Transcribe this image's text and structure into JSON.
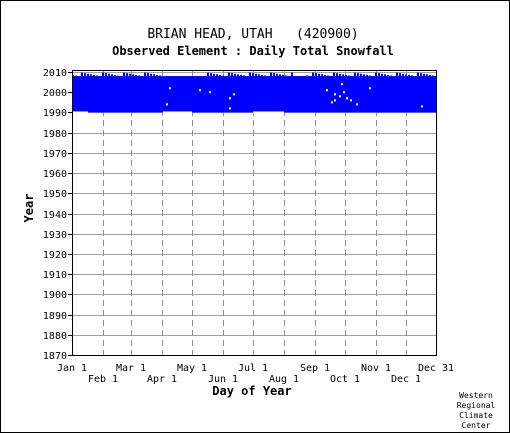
{
  "chart_data": {
    "type": "heatmap",
    "title": "BRIAN HEAD, UTAH   (420900)",
    "subtitle": "Observed Element : Daily Total Snowfall",
    "xlabel": "Day of Year",
    "ylabel": "Year",
    "ylim": [
      1870,
      2011
    ],
    "xlim": [
      1,
      365
    ],
    "y_ticks": [
      1870,
      1880,
      1890,
      1900,
      1910,
      1920,
      1930,
      1940,
      1950,
      1960,
      1970,
      1980,
      1990,
      2000,
      2010
    ],
    "x_ticks_upper": [
      {
        "label": "Jan 1",
        "day": 1
      },
      {
        "label": "Mar 1",
        "day": 60
      },
      {
        "label": "May 1",
        "day": 121
      },
      {
        "label": "Jul 1",
        "day": 182
      },
      {
        "label": "Sep 1",
        "day": 244
      },
      {
        "label": "Nov 1",
        "day": 305
      },
      {
        "label": "Dec 31",
        "day": 365
      }
    ],
    "x_ticks_lower": [
      {
        "label": "Feb 1",
        "day": 32
      },
      {
        "label": "Apr 1",
        "day": 91
      },
      {
        "label": "Jun 1",
        "day": 152
      },
      {
        "label": "Aug 1",
        "day": 213
      },
      {
        "label": "Oct 1",
        "day": 274
      },
      {
        "label": "Dec 1",
        "day": 335
      }
    ],
    "grid": true,
    "data_color": "#0000ff",
    "observed_period": {
      "start_year": 1990,
      "end_year": 2008
    },
    "partial_recent_years": {
      "from_year": 2008,
      "to_year": 2010
    },
    "missing_spots": [
      {
        "year": 2002,
        "day": 98
      },
      {
        "year": 2001,
        "day": 128
      },
      {
        "year": 2000,
        "day": 138
      },
      {
        "year": 1999,
        "day": 162
      },
      {
        "year": 1997,
        "day": 158
      },
      {
        "year": 1994,
        "day": 95
      },
      {
        "year": 1992,
        "day": 158
      },
      {
        "year": 2000,
        "day": 272
      },
      {
        "year": 1999,
        "day": 263
      },
      {
        "year": 1998,
        "day": 268
      },
      {
        "year": 1997,
        "day": 275
      },
      {
        "year": 1996,
        "day": 279
      },
      {
        "year": 1996,
        "day": 263
      },
      {
        "year": 1995,
        "day": 260
      },
      {
        "year": 1994,
        "day": 285
      },
      {
        "year": 1993,
        "day": 350
      },
      {
        "year": 2004,
        "day": 270
      },
      {
        "year": 2002,
        "day": 298
      },
      {
        "year": 2001,
        "day": 255
      }
    ]
  },
  "credit": [
    "Western",
    "Regional",
    "Climate",
    "Center"
  ]
}
